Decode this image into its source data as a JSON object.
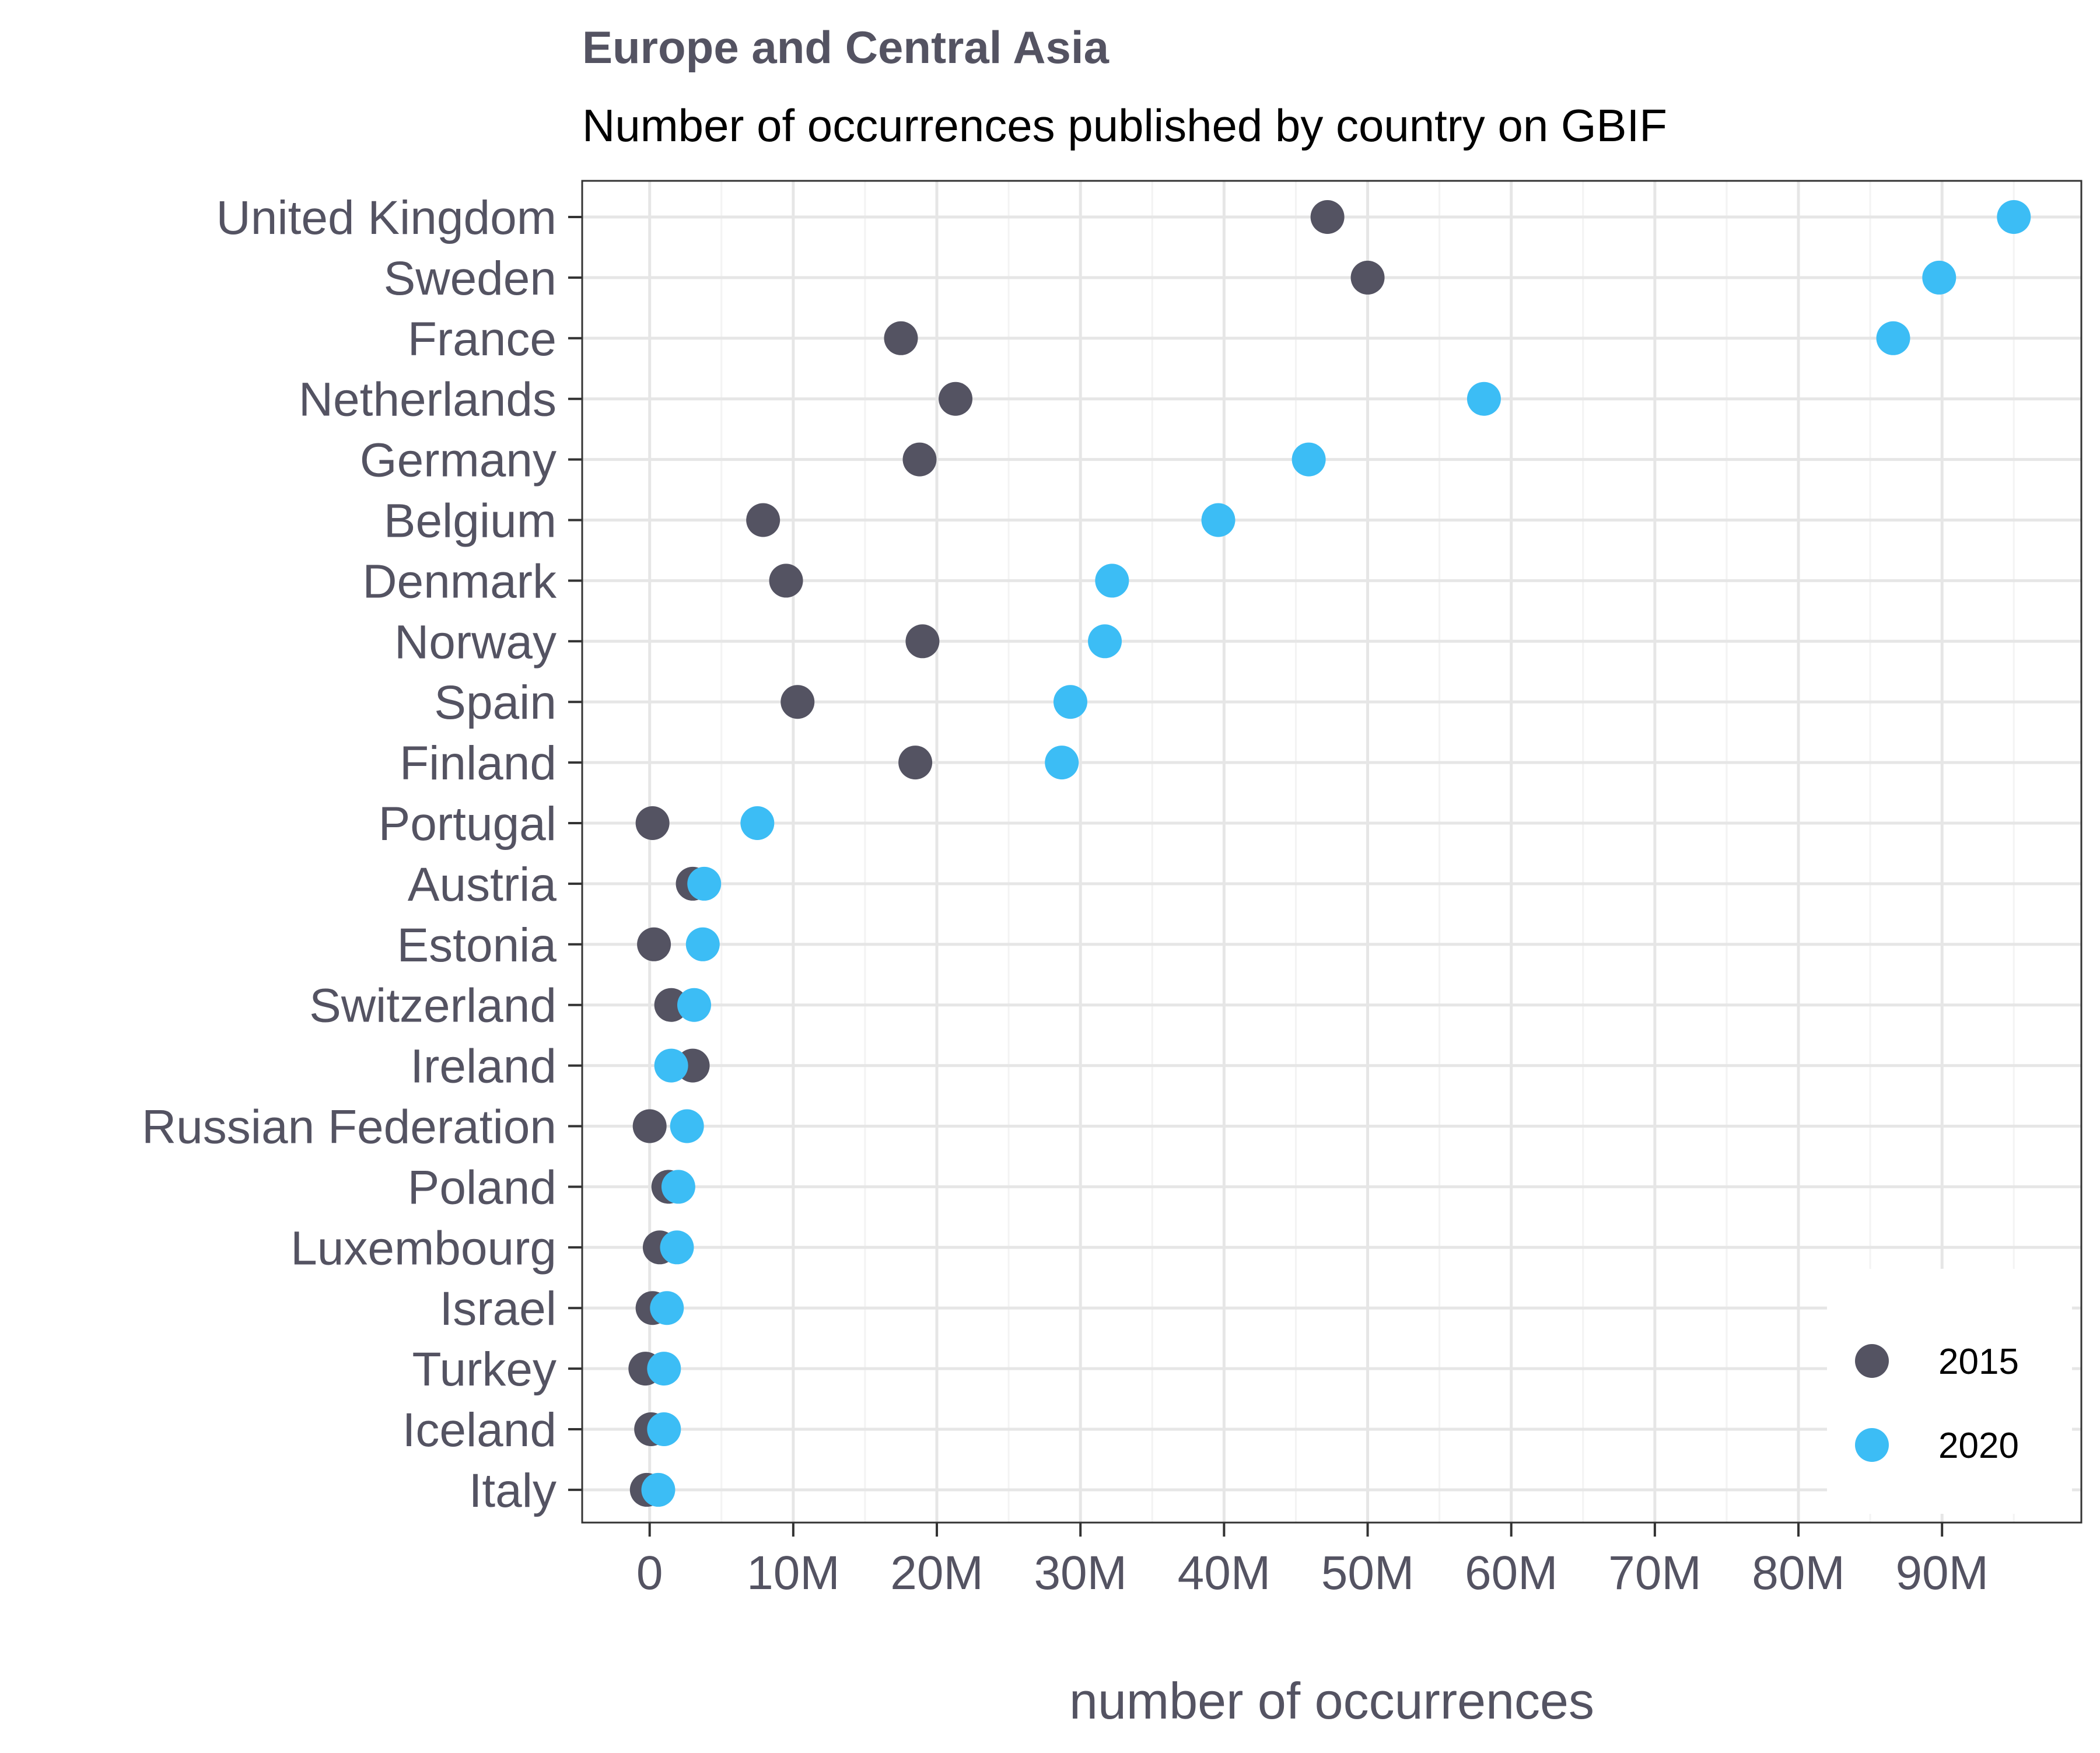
{
  "chart_data": {
    "type": "scatter",
    "title": "Europe and Central Asia",
    "subtitle": "Number of occurrences published by country on GBIF",
    "xlabel": "number of occurrences",
    "ylabel": "",
    "xlim": [
      -4.7,
      99.7
    ],
    "x_ticks": [
      0,
      10,
      20,
      30,
      40,
      50,
      60,
      70,
      80,
      90
    ],
    "x_tick_labels": [
      "0",
      "10M",
      "20M",
      "30M",
      "40M",
      "50M",
      "60M",
      "70M",
      "80M",
      "90M"
    ],
    "x_unit": "M",
    "grid": true,
    "legend_position": "bottom-right",
    "categories": [
      "United Kingdom",
      "Sweden",
      "France",
      "Netherlands",
      "Germany",
      "Belgium",
      "Denmark",
      "Norway",
      "Spain",
      "Finland",
      "Portugal",
      "Austria",
      "Estonia",
      "Switzerland",
      "Ireland",
      "Russian Federation",
      "Poland",
      "Luxembourg",
      "Israel",
      "Turkey",
      "Iceland",
      "Italy"
    ],
    "series": [
      {
        "name": "2015",
        "color": "#545362",
        "values": [
          47.2,
          50.0,
          17.5,
          21.3,
          18.8,
          7.9,
          9.5,
          19.0,
          10.3,
          18.5,
          0.2,
          3.0,
          0.3,
          1.5,
          3.0,
          0.0,
          1.3,
          0.7,
          0.2,
          -0.3,
          0.1,
          -0.2
        ]
      },
      {
        "name": "2020",
        "color": "#3cbdf5",
        "values": [
          95.0,
          89.8,
          86.6,
          58.1,
          45.9,
          39.6,
          32.2,
          31.7,
          29.3,
          28.7,
          7.5,
          3.8,
          3.7,
          3.1,
          1.5,
          2.6,
          2.0,
          1.9,
          1.2,
          1.0,
          1.0,
          0.6
        ]
      }
    ]
  }
}
